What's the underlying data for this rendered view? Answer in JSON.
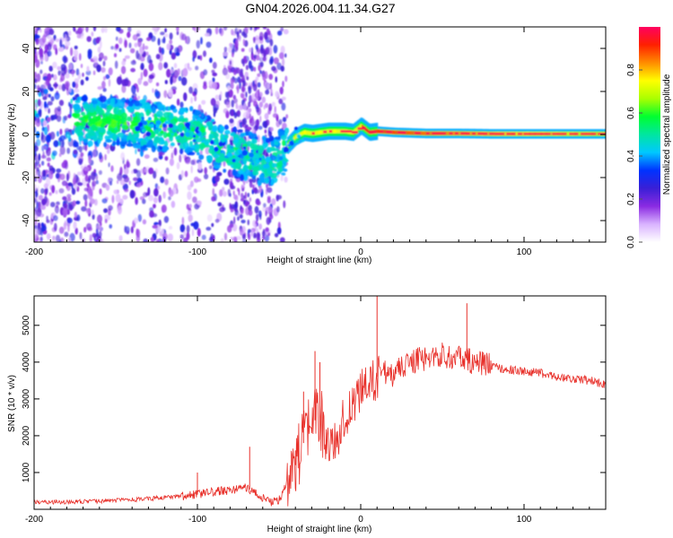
{
  "title": "GN04.2026.004.11.34.G27",
  "colors": {
    "snr_line": "#e8302a",
    "axis": "#000000",
    "colormap": [
      "#ffffff",
      "#d9b3ff",
      "#8a2be2",
      "#3a1fd6",
      "#0033ff",
      "#00c8ff",
      "#00e6a0",
      "#00ff30",
      "#aaff00",
      "#ffff00",
      "#ff8c00",
      "#ff2000",
      "#ff0060"
    ]
  },
  "chart_data": [
    {
      "type": "heatmap",
      "title": "GN04.2026.004.11.34.G27",
      "xlabel": "Height of straight line (km)",
      "ylabel": "Frequency (Hz)",
      "xlim": [
        -200,
        150
      ],
      "ylim": [
        -50,
        50
      ],
      "xticks": [
        -200,
        -100,
        0,
        100
      ],
      "xtick_labels": [
        "-200",
        "-100",
        "0",
        "100"
      ],
      "yticks": [
        -40,
        -20,
        0,
        20,
        40
      ],
      "ytick_labels": [
        "-40",
        "-20",
        "0",
        "20",
        "40"
      ],
      "ridge": {
        "x": [
          -150,
          -130,
          -110,
          -100,
          -90,
          -80,
          -70,
          -60,
          -52,
          -45,
          -40,
          -35,
          -30,
          -25,
          -20,
          -10,
          -5,
          0,
          5,
          10,
          20,
          40,
          60,
          80,
          100,
          120,
          150
        ],
        "y": [
          6,
          4,
          3,
          0,
          -4,
          -8,
          -10,
          -12,
          -13,
          -5,
          -1,
          1,
          0.5,
          1,
          1.5,
          1.5,
          1,
          4,
          1,
          1.5,
          1,
          0.5,
          0.5,
          0.3,
          0.3,
          0.3,
          0.3
        ]
      },
      "colorbar": {
        "label": "Normalized spectral amplitude",
        "range": [
          0,
          1
        ],
        "ticks": [
          0.0,
          0.2,
          0.4,
          0.6,
          0.8
        ],
        "tick_labels": [
          "0.0",
          "0.2",
          "0.4",
          "0.6",
          "0.8"
        ]
      }
    },
    {
      "type": "line",
      "xlabel": "Height of straight line (km)",
      "ylabel": "SNR (10 * v/v)",
      "xlim": [
        -200,
        150
      ],
      "ylim": [
        0,
        5800
      ],
      "xticks": [
        -200,
        -100,
        0,
        100
      ],
      "xtick_labels": [
        "-200",
        "-100",
        "0",
        "100"
      ],
      "yticks": [
        1000,
        2000,
        3000,
        4000,
        5000
      ],
      "ytick_labels": [
        "1000",
        "2000",
        "3000",
        "4000",
        "5000"
      ],
      "series": [
        {
          "name": "SNR",
          "x": [
            -200,
            -180,
            -160,
            -140,
            -120,
            -100,
            -90,
            -80,
            -70,
            -60,
            -55,
            -50,
            -45,
            -40,
            -35,
            -30,
            -25,
            -20,
            -15,
            -10,
            -5,
            0,
            5,
            10,
            15,
            20,
            30,
            40,
            50,
            60,
            70,
            80,
            90,
            100,
            110,
            120,
            130,
            140,
            150
          ],
          "y": [
            200,
            200,
            220,
            260,
            320,
            400,
            480,
            520,
            600,
            300,
            200,
            250,
            800,
            1200,
            1800,
            2300,
            2600,
            1600,
            1900,
            2500,
            2900,
            3200,
            3300,
            3600,
            3500,
            3700,
            4000,
            4100,
            4200,
            4100,
            4000,
            3900,
            3800,
            3750,
            3700,
            3600,
            3550,
            3500,
            3400
          ]
        }
      ],
      "peaks": {
        "x": [
          -100,
          -68,
          -40,
          -35,
          -28,
          -25,
          10,
          65
        ],
        "y": [
          1000,
          1700,
          1600,
          3200,
          4300,
          4000,
          5800,
          5600
        ]
      }
    }
  ]
}
